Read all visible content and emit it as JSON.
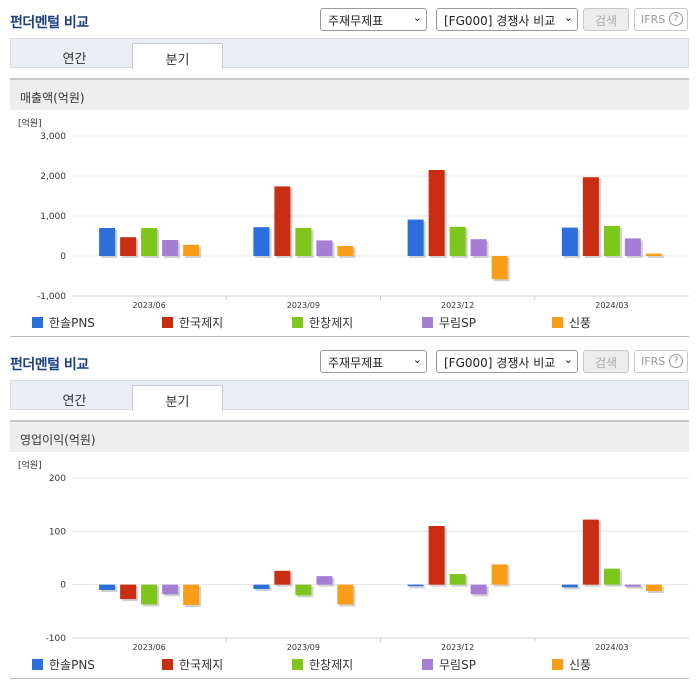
{
  "header": {
    "title": "펀더멘털 비교",
    "select_statement": "주재무제표",
    "select_compare": "[FG000] 경쟁사 비교",
    "search_label": "검색",
    "ifrs_label": "IFRS",
    "help_glyph": "?"
  },
  "tabs": [
    {
      "label": "연간",
      "active": false
    },
    {
      "label": "분기",
      "active": true
    }
  ],
  "colors": {
    "한솔PNS": "#2a6fdb",
    "한국제지": "#c92e13",
    "한창제지": "#7ec61b",
    "무림SP": "#a67ed6",
    "신풍": "#f99d16"
  },
  "chart_data": [
    {
      "type": "bar",
      "title": "매출액(억원)",
      "unit_label": "[억원]",
      "categories": [
        "2023/06",
        "2023/09",
        "2023/12",
        "2024/03"
      ],
      "ylim": [
        -1000,
        3000
      ],
      "yticks": [
        3000,
        2000,
        1000,
        0,
        -1000
      ],
      "ytick_labels": [
        "3,000",
        "2,000",
        "1,000",
        "0",
        "-1,000"
      ],
      "grid": true,
      "legend_position": "bottom",
      "series": [
        {
          "name": "한솔PNS",
          "values": [
            700,
            720,
            910,
            710
          ]
        },
        {
          "name": "한국제지",
          "values": [
            470,
            1740,
            2150,
            1970
          ]
        },
        {
          "name": "한창제지",
          "values": [
            700,
            700,
            730,
            750
          ]
        },
        {
          "name": "무림SP",
          "values": [
            400,
            390,
            420,
            440
          ]
        },
        {
          "name": "신풍",
          "values": [
            280,
            250,
            -580,
            60
          ]
        }
      ]
    },
    {
      "type": "bar",
      "title": "영업이익(억원)",
      "unit_label": "[억원]",
      "categories": [
        "2023/06",
        "2023/09",
        "2023/12",
        "2024/03"
      ],
      "ylim": [
        -100,
        200
      ],
      "yticks": [
        200,
        100,
        0,
        -100
      ],
      "ytick_labels": [
        "200",
        "100",
        "0",
        "-100"
      ],
      "grid": true,
      "legend_position": "bottom",
      "series": [
        {
          "name": "한솔PNS",
          "values": [
            -10,
            -8,
            -3,
            -5
          ]
        },
        {
          "name": "한국제지",
          "values": [
            -27,
            26,
            110,
            122
          ]
        },
        {
          "name": "한창제지",
          "values": [
            -37,
            -20,
            20,
            30
          ]
        },
        {
          "name": "무림SP",
          "values": [
            -18,
            16,
            -18,
            -4
          ]
        },
        {
          "name": "신풍",
          "values": [
            -38,
            -37,
            38,
            -12
          ]
        }
      ]
    }
  ]
}
